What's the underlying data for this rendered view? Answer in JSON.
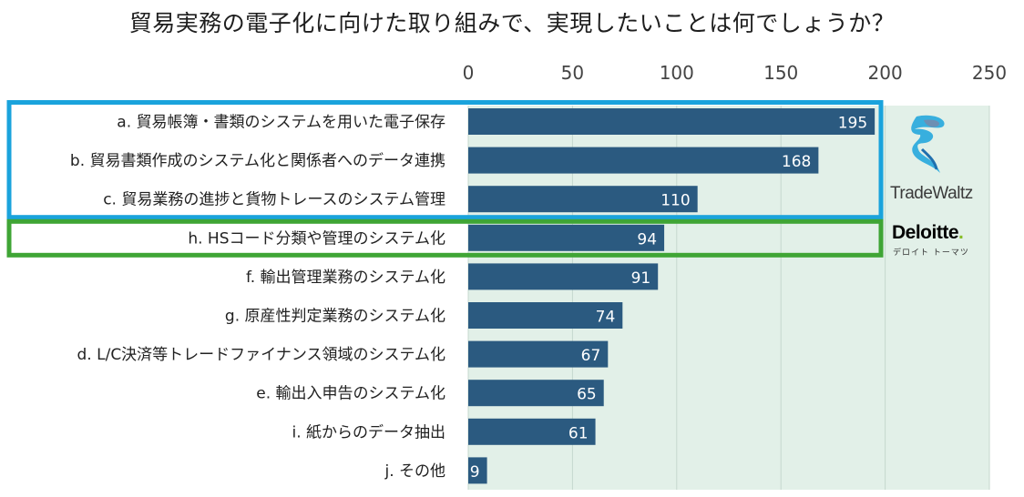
{
  "title": "貿易実務の電子化に向けた取り組みで、実現したいことは何でしょうか？",
  "colors": {
    "bar": "#2b5a80",
    "plot_bg": "#e2f0e8",
    "grid": "#c6d8ce",
    "highlight_blue": "#1aa3dc",
    "highlight_green": "#3fa535",
    "deloitte_green": "#86bc25"
  },
  "logos": {
    "tradewaltz": {
      "icon": "tradewaltz-swirl-icon",
      "text": "TradeWaltz"
    },
    "deloitte": {
      "text": "Deloitte",
      "dot": ".",
      "subtext": "デロイト トーマツ"
    }
  },
  "chart_data": {
    "type": "bar",
    "orientation": "horizontal",
    "title": "貿易実務の電子化に向けた取り組みで、実現したいことは何でしょうか？",
    "xlabel": "",
    "ylabel": "",
    "xlim": [
      0,
      250
    ],
    "xticks": [
      0,
      50,
      100,
      150,
      200,
      250
    ],
    "x_axis_position": "top",
    "grid": true,
    "categories": [
      "a. 貿易帳簿・書類のシステムを用いた電子保存",
      "b. 貿易書類作成のシステム化と関係者へのデータ連携",
      "c. 貿易業務の進捗と貨物トレースのシステム管理",
      "h. HSコード分類や管理のシステム化",
      "f.  輸出管理業務のシステム化",
      "g. 原産性判定業務のシステム化",
      "d. L/C決済等トレードファイナンス領域のシステム化",
      "e. 輸出入申告のシステム化",
      "i.  紙からのデータ抽出",
      "j. その他"
    ],
    "values": [
      195,
      168,
      110,
      94,
      91,
      74,
      67,
      65,
      61,
      9
    ],
    "highlight_groups": [
      {
        "color": "blue",
        "categories": [
          "a",
          "b",
          "c"
        ]
      },
      {
        "color": "green",
        "categories": [
          "h"
        ]
      }
    ]
  }
}
